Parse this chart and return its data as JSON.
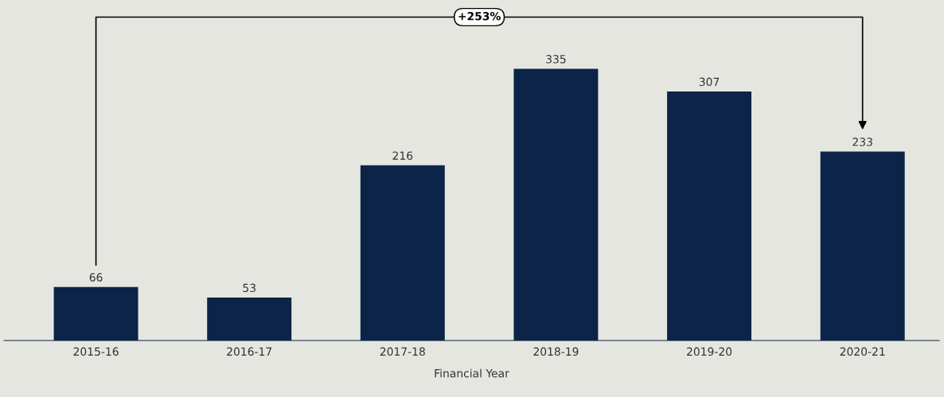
{
  "chart_data": {
    "type": "bar",
    "xlabel": "Financial Year",
    "categories": [
      "2015-16",
      "2016-17",
      "2017-18",
      "2018-19",
      "2019-20",
      "2020-21"
    ],
    "values": [
      66,
      53,
      216,
      335,
      307,
      233
    ],
    "color": "#0b2447",
    "data_labels": true,
    "grid": false,
    "annotations": [
      "+253%"
    ]
  }
}
